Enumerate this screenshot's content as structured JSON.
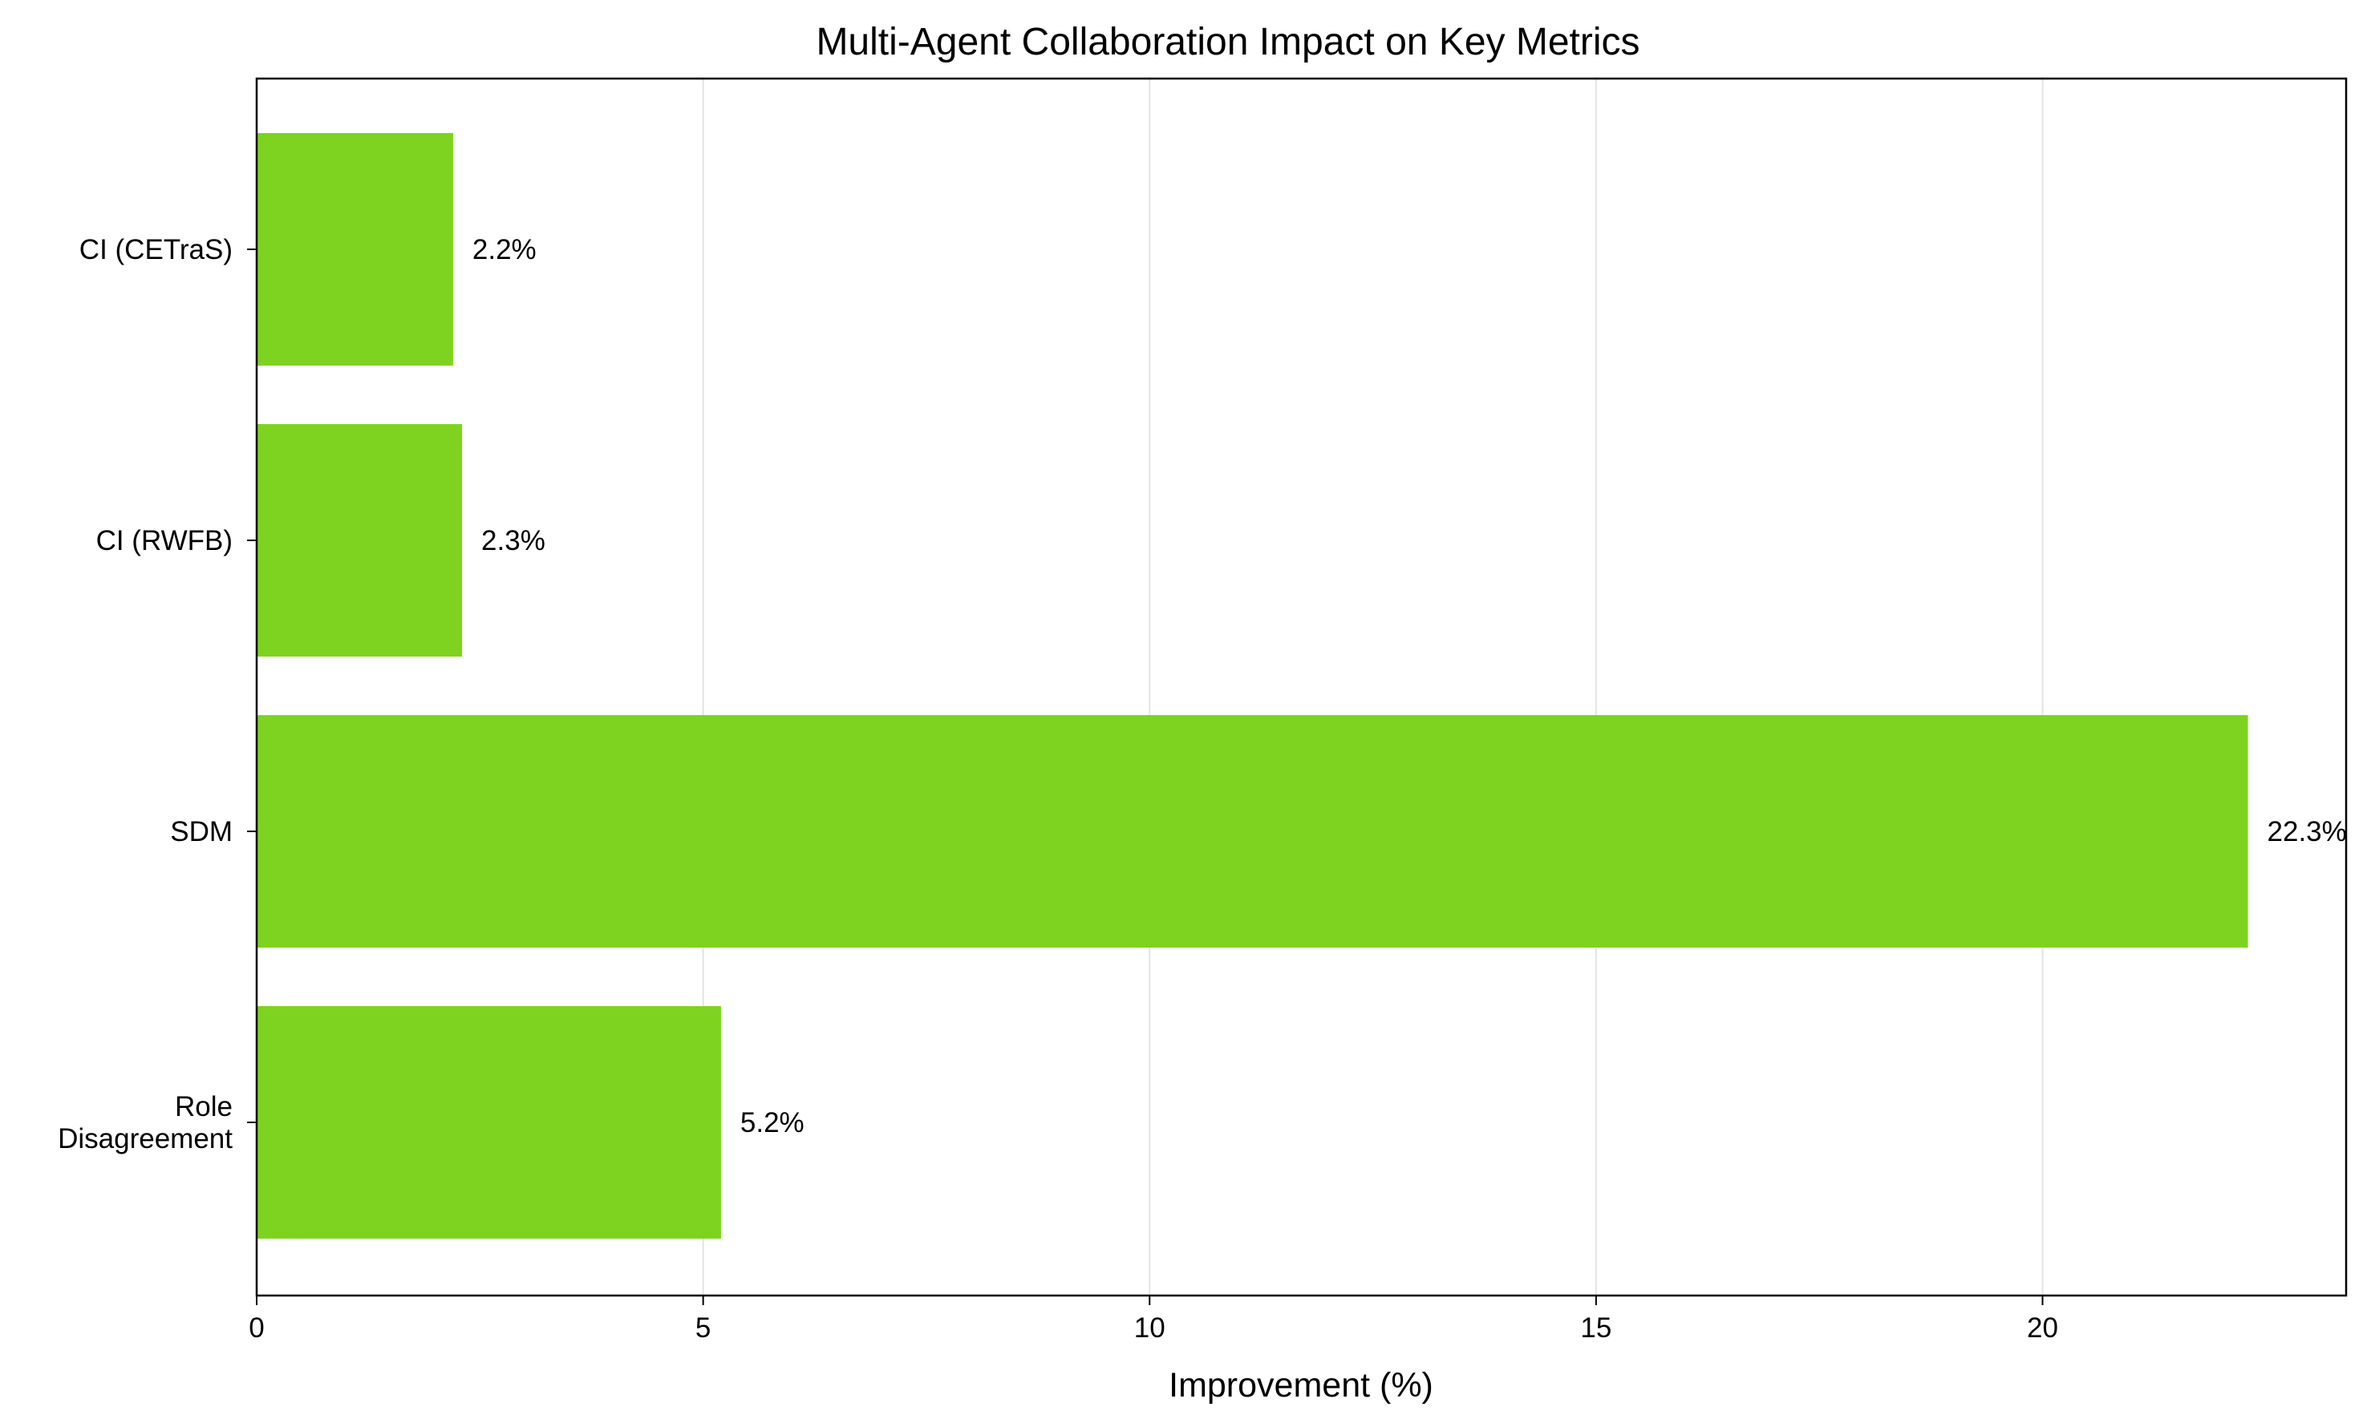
{
  "chart_data": {
    "type": "bar",
    "orientation": "horizontal",
    "title": "Multi-Agent Collaboration Impact on Key Metrics",
    "xlabel": "Improvement (%)",
    "ylabel": "",
    "categories": [
      [
        "CI (CETraS)"
      ],
      [
        "CI (RWFB)"
      ],
      [
        "SDM"
      ],
      [
        "Role",
        "Disagreement"
      ]
    ],
    "values": [
      2.2,
      2.3,
      22.3,
      5.2
    ],
    "data_labels": [
      "2.2%",
      "2.3%",
      "22.3%",
      "5.2%"
    ],
    "xlim": [
      0,
      23.4
    ],
    "xticks": [
      0,
      5,
      10,
      15,
      20
    ],
    "xtick_labels": [
      "0",
      "5",
      "10",
      "15",
      "20"
    ],
    "grid": "vertical",
    "bar_color": "#7ed321"
  }
}
